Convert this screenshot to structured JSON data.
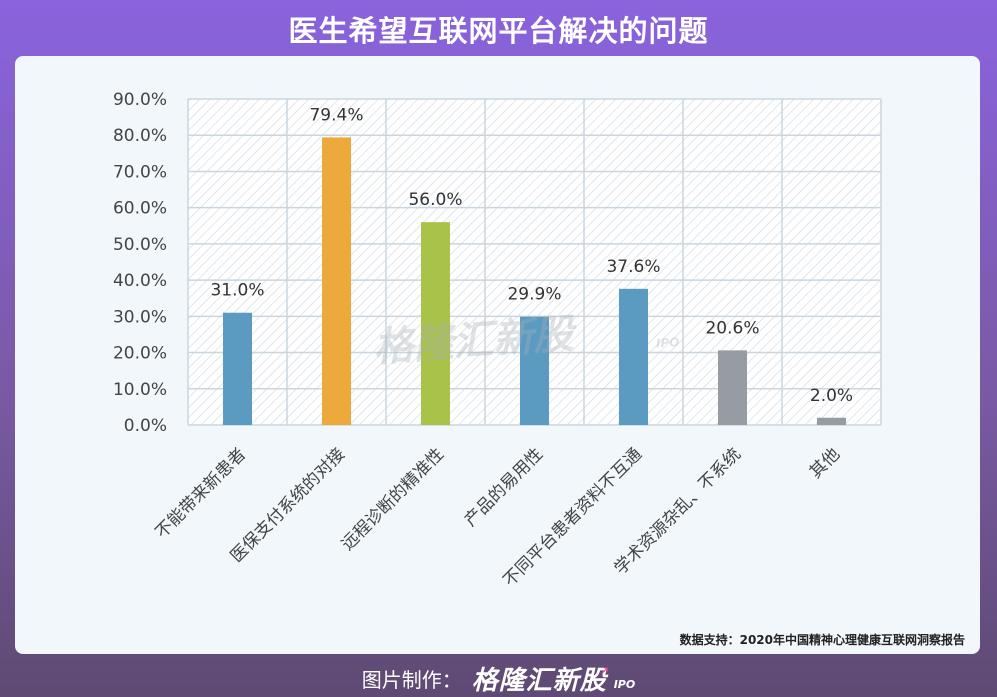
{
  "header": {
    "title": "医生希望互联网平台解决的问题"
  },
  "chart_data": {
    "type": "bar",
    "categories": [
      "不能带来新患者",
      "医保支付系统的对接",
      "远程诊断的精准性",
      "产品的易用性",
      "不同平台患者资料不互通",
      "学术资源杂乱、不系统",
      "其他"
    ],
    "values": [
      31.0,
      79.4,
      56.0,
      29.9,
      37.6,
      20.6,
      2.0
    ],
    "data_labels": [
      "31.0%",
      "79.4%",
      "56.0%",
      "29.9%",
      "37.6%",
      "20.6%",
      "2.0%"
    ],
    "bar_colors": [
      "#5b9bc2",
      "#eea93d",
      "#a8c24a",
      "#5b9bc2",
      "#5b9bc2",
      "#979ca2",
      "#979ca2"
    ],
    "yticks": [
      "0.0%",
      "10.0%",
      "20.0%",
      "30.0%",
      "40.0%",
      "50.0%",
      "60.0%",
      "70.0%",
      "80.0%",
      "90.0%"
    ],
    "ylim": [
      0,
      90
    ],
    "grid": true,
    "title": "",
    "xlabel": "",
    "ylabel": ""
  },
  "watermark": {
    "text": "格隆汇新股",
    "sub": "IPO"
  },
  "source": "数据支持：2020年中国精神心理健康互联网洞察报告",
  "footer": {
    "label": "图片制作：",
    "brand": "格隆汇新股",
    "sub": "IPO"
  }
}
